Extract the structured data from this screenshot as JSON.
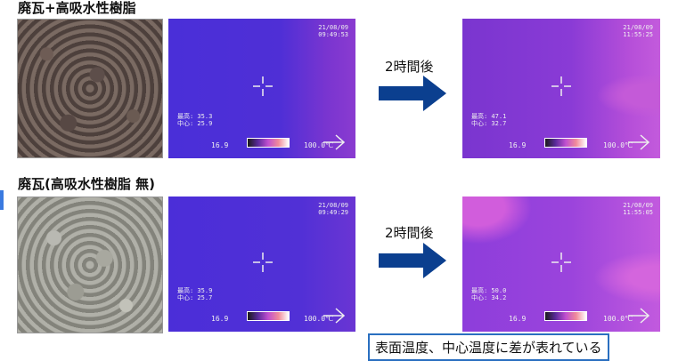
{
  "row1": {
    "title": "廃瓦+高吸水性樹脂",
    "before": {
      "date": "21/08/09",
      "time": "09:49:53",
      "max": "最高: 35.3",
      "center": "中心: 25.9"
    },
    "after": {
      "date": "21/08/09",
      "time": "11:55:25",
      "max": "最高: 47.1",
      "center": "中心: 32.7"
    },
    "arrow_label": "2時間後"
  },
  "row2": {
    "title": "廃瓦(高吸水性樹脂 無)",
    "before": {
      "date": "21/08/09",
      "time": "09:49:29",
      "max": "最高: 35.9",
      "center": "中心: 25.7"
    },
    "after": {
      "date": "21/08/09",
      "time": "11:55:05",
      "max": "最高: 50.0",
      "center": "中心: 34.2"
    },
    "arrow_label": "2時間後"
  },
  "scale": {
    "min": "16.9",
    "max": "100.0℃"
  },
  "note": "表面温度、中心温度に差が表れている",
  "colors": {
    "arrow": "#0b3f8f",
    "note_border": "#2a6fc0"
  }
}
